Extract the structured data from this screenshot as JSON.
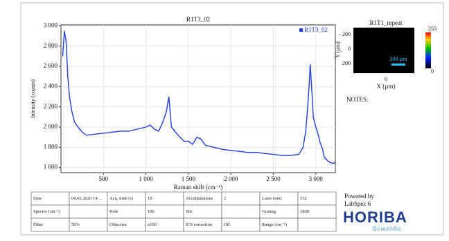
{
  "chart_data": {
    "type": "line",
    "title": "R1T3_02",
    "x_label": "Raman shift (cm⁻¹)",
    "y_label": "Intensity (counts)",
    "x": [
      20,
      40,
      60,
      80,
      100,
      130,
      160,
      200,
      250,
      300,
      400,
      500,
      600,
      700,
      800,
      900,
      1000,
      1050,
      1100,
      1150,
      1200,
      1240,
      1270,
      1300,
      1350,
      1400,
      1450,
      1500,
      1550,
      1600,
      1650,
      1700,
      1800,
      1900,
      2000,
      2100,
      2200,
      2300,
      2400,
      2500,
      2600,
      2700,
      2800,
      2850,
      2880,
      2900,
      2920,
      2935,
      2950,
      2970,
      3000,
      3020,
      3050,
      3080,
      3100,
      3150,
      3200,
      3230
    ],
    "series": [
      {
        "name": "R1T3_02",
        "color": "#1a3de0",
        "values": [
          2700,
          2950,
          2850,
          2500,
          2300,
          2150,
          2050,
          2000,
          1950,
          1920,
          1930,
          1940,
          1950,
          1960,
          1960,
          1980,
          2000,
          2020,
          1980,
          1960,
          2050,
          2150,
          2300,
          2000,
          1950,
          1900,
          1860,
          1860,
          1830,
          1900,
          1880,
          1820,
          1800,
          1780,
          1770,
          1760,
          1750,
          1750,
          1740,
          1730,
          1720,
          1720,
          1730,
          1800,
          1950,
          2150,
          2400,
          2620,
          2400,
          2100,
          2000,
          1950,
          1850,
          1780,
          1700,
          1660,
          1640,
          1650
        ]
      }
    ],
    "xlim": [
      0,
      3230
    ],
    "ylim": [
      1550,
      3010
    ],
    "xticks": [
      500,
      {
        "value": 1000,
        "label": "1 000"
      },
      {
        "value": 1500,
        "label": "1 500"
      },
      {
        "value": 2000,
        "label": "2 000"
      },
      {
        "value": 2500,
        "label": "2 500"
      },
      {
        "value": 3000,
        "label": "3 000"
      }
    ],
    "yticks": [
      {
        "value": 1600,
        "label": "1 600"
      },
      {
        "value": 1800,
        "label": "1 800"
      },
      {
        "value": 2000,
        "label": "2 000"
      },
      {
        "value": 2200,
        "label": "2 200"
      },
      {
        "value": 2400,
        "label": "2 400"
      },
      {
        "value": 2600,
        "label": "2 600"
      },
      {
        "value": 2800,
        "label": "2 800"
      },
      {
        "value": 3000,
        "label": "3 000"
      }
    ],
    "grid": true,
    "legend": "upper right"
  },
  "map": {
    "title": "R1T1_repeat",
    "y_label": "Y (µm)",
    "x_label": "X (µm)",
    "y_ticks": [
      "- 200",
      "0",
      "200"
    ],
    "x_tick": "0",
    "scale_bar": "200 µm",
    "colorbar_max": "255",
    "colorbar_min": "0"
  },
  "notes": "NOTES:",
  "table": {
    "rows": [
      [
        "Date",
        "04.02.2020 14:...",
        "Acq. time (s)",
        "10",
        "Accumulations",
        "2",
        "Laser (nm)",
        "532"
      ],
      [
        "Spectro (cm⁻¹)",
        null,
        "Hole",
        "100",
        "Slit",
        null,
        "Grating",
        "1800"
      ],
      [
        "Filter",
        "50%",
        "Objective",
        "x100",
        "ICS correction",
        "Off",
        "Range (cm⁻¹)",
        null
      ]
    ]
  },
  "footer": {
    "powered": "Powered by",
    "software": "LabSpec 6",
    "brand": "HORIBA",
    "brand_sub": "Scientific"
  }
}
